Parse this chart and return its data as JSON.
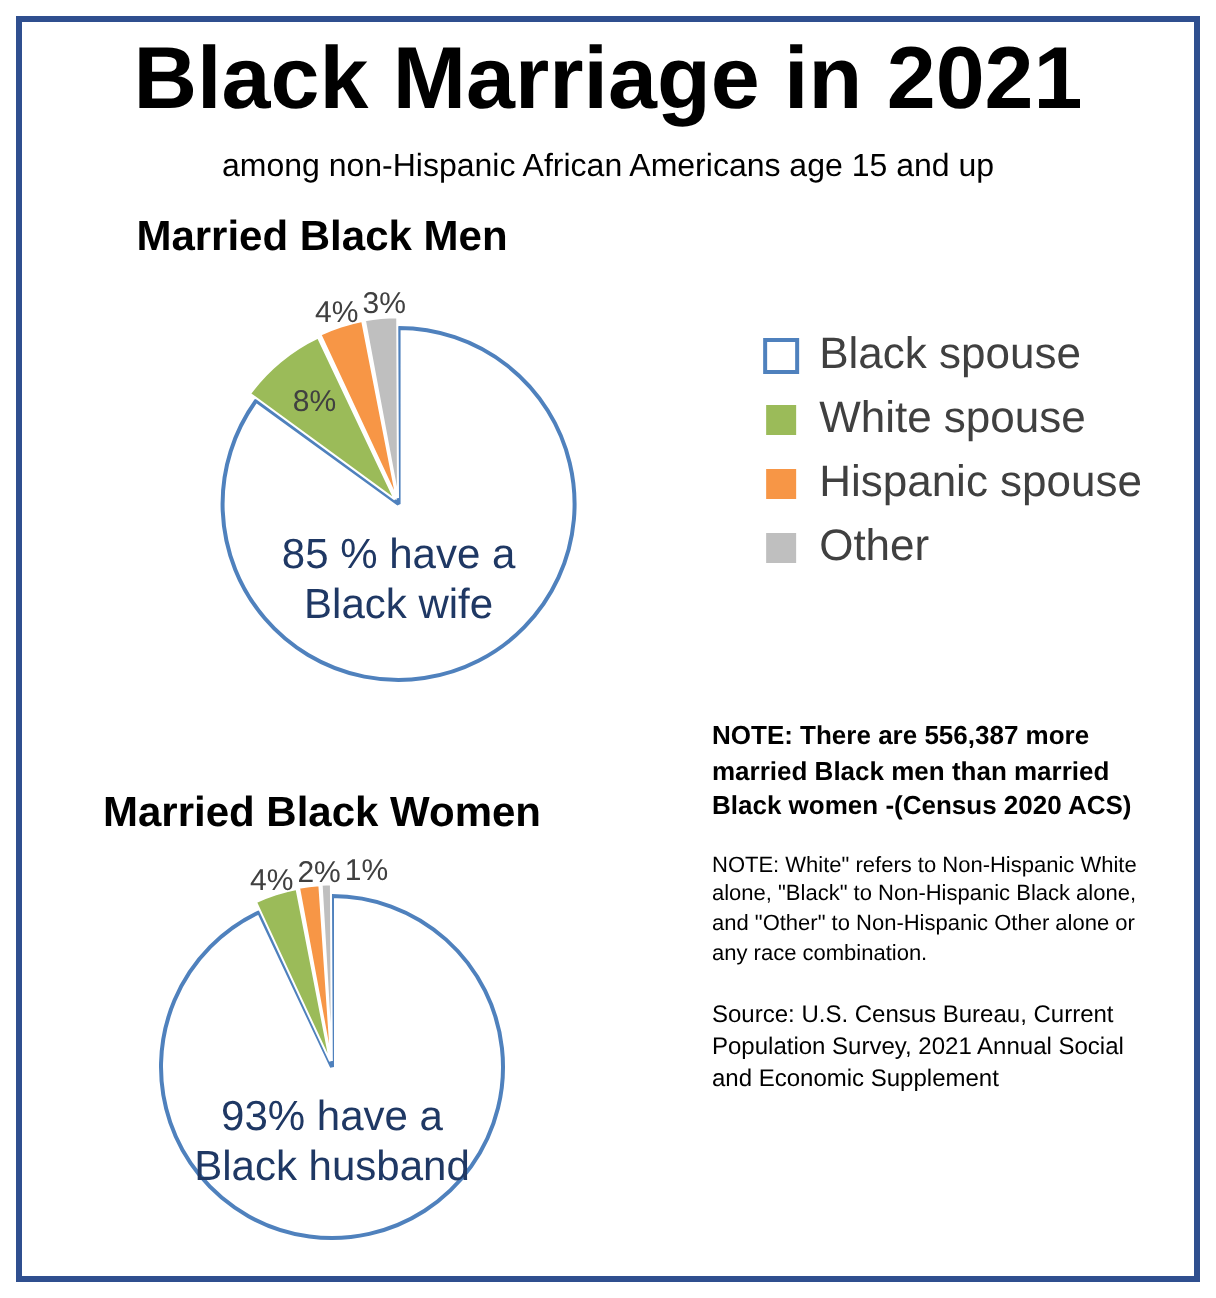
{
  "chart_data": [
    {
      "type": "other",
      "title": "Black Marriage in 2021",
      "subtitle": "among non-Hispanic African Americans age 15 and up",
      "annotations": [
        "NOTE: There are 556,387 more married Black men than married Black women -(Census 2020 ACS)",
        "NOTE:  White\" refers to Non-Hispanic White alone, \"Black\" to Non-Hispanic Black alone, and \"Other\" to Non-Hispanic Other alone or any race combination.",
        "Source: U.S. Census Bureau, Current Population Survey, 2021 Annual Social and Economic Supplement"
      ]
    },
    {
      "type": "pie",
      "title": "Married Black Men",
      "categories": [
        "Black spouse",
        "White spouse",
        "Hispanic spouse",
        "Other"
      ],
      "values": [
        85,
        8,
        4,
        3
      ],
      "colors": [
        "#ffffff",
        "#9bbb59",
        "#f79646",
        "#bfbfbf"
      ],
      "value_labels": [
        null,
        "8%",
        "4%",
        "3%"
      ],
      "annotations": [
        "85 % have a Black wife"
      ],
      "legend": "right"
    },
    {
      "type": "pie",
      "title": "Married Black Women",
      "categories": [
        null,
        null,
        null,
        null
      ],
      "values": [
        93,
        4,
        2,
        1
      ],
      "colors": [
        "#ffffff",
        "#9bbb59",
        "#f79646",
        "#bfbfbf"
      ],
      "value_labels": [
        null,
        "4%",
        "2%",
        "1%"
      ],
      "annotations": [
        "93% have a Black husband"
      ],
      "legend": false
    }
  ]
}
